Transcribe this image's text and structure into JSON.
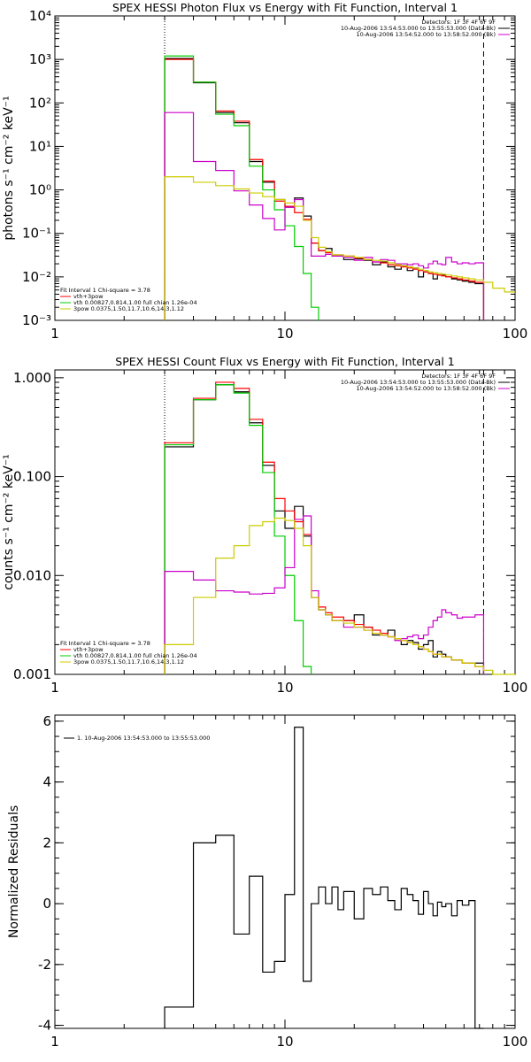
{
  "chart_data": [
    {
      "type": "line",
      "title": "SPEX HESSI Photon Flux vs Energy with Fit Function, Interval 1",
      "ylabel": "photons s⁻¹ cm⁻² keV⁻¹",
      "xlabel": "",
      "x_scale": "log",
      "y_scale": "log",
      "xlim": [
        1,
        100
      ],
      "ylim": [
        0.001,
        10000
      ],
      "x_ticks": [
        "1",
        "10",
        "100"
      ],
      "y_ticks": [
        "10⁻³",
        "10⁻²",
        "10⁻¹",
        "10⁰",
        "10¹",
        "10²",
        "10³",
        "10⁴"
      ],
      "vlines": [
        {
          "x": 3.0,
          "style": "dotted"
        },
        {
          "x": 73,
          "style": "dashed"
        }
      ],
      "legend_top_right": [
        {
          "text": "Detectors: 1F 3F 4F 6F 9F",
          "color": "#000000"
        },
        {
          "text": "10-Aug-2006 13:54:53.000 to 13:55:53.000 (Data-Bk)",
          "color": "#000000"
        },
        {
          "text": "10-Aug-2006 13:54:52.000 to 13:58:52.000 (Bk)",
          "color": "#cc00cc"
        }
      ],
      "legend_bottom_left": [
        {
          "text": "Fit Interval 1    Chi-square = 3.78",
          "color": "#000000"
        },
        {
          "text": "vth+3pow",
          "color": "#ff0000"
        },
        {
          "text": "vth 0.00827,0.814,1.00   full chian 1.26e-04",
          "color": "#00cc00"
        },
        {
          "text": "3pow 0.0375,1.50,11.7,10.6,14.3,1.12",
          "color": "#cccc00"
        }
      ],
      "series": [
        {
          "color": "#000000",
          "edges": [
            3,
            4,
            5,
            6,
            7,
            8,
            9,
            10,
            11,
            12,
            13,
            14,
            15,
            16,
            18,
            20,
            22,
            24,
            26,
            28,
            30,
            32,
            34,
            36,
            38,
            40,
            42,
            44,
            46,
            48,
            50,
            53,
            56,
            59,
            63,
            67,
            73
          ],
          "values": [
            1050,
            290,
            60,
            35,
            4.5,
            1.5,
            0.6,
            0.4,
            0.65,
            0.25,
            0.06,
            0.04,
            0.045,
            0.03,
            0.025,
            0.026,
            0.024,
            0.019,
            0.022,
            0.017,
            0.015,
            0.018,
            0.014,
            0.016,
            0.01,
            0.013,
            0.012,
            0.009,
            0.011,
            0.011,
            0.01,
            0.009,
            0.0085,
            0.008,
            0.0075,
            0.007
          ]
        },
        {
          "color": "#ff0000",
          "edges": [
            3,
            4,
            5,
            6,
            7,
            8,
            9,
            10,
            11,
            12,
            13,
            14,
            15,
            16,
            18,
            20,
            22,
            24,
            26,
            28,
            30,
            32,
            34,
            36,
            38,
            40,
            42,
            44,
            46,
            48,
            50,
            53,
            56,
            59,
            63,
            67,
            73
          ],
          "values": [
            1000,
            300,
            65,
            38,
            5,
            1.6,
            0.55,
            0.42,
            0.3,
            0.21,
            0.06,
            0.04,
            0.036,
            0.032,
            0.03,
            0.027,
            0.025,
            0.022,
            0.021,
            0.019,
            0.018,
            0.017,
            0.016,
            0.015,
            0.014,
            0.013,
            0.012,
            0.0115,
            0.011,
            0.0105,
            0.01,
            0.0095,
            0.009,
            0.0085,
            0.008,
            0.0075
          ]
        },
        {
          "color": "#00cc00",
          "edges": [
            3,
            4,
            5,
            6,
            7,
            8,
            9,
            10,
            11,
            12,
            13,
            14
          ],
          "values": [
            1200,
            300,
            55,
            30,
            3.5,
            1,
            0.35,
            0.15,
            0.05,
            0.012,
            0.002
          ]
        },
        {
          "color": "#cc00cc",
          "edges": [
            3,
            4,
            5,
            6,
            7,
            8,
            9,
            10,
            11,
            12,
            13,
            14,
            15,
            16,
            18,
            20,
            22,
            24,
            26,
            28,
            30,
            32,
            34,
            36,
            38,
            40,
            42,
            44,
            46,
            48,
            50,
            53,
            56,
            59,
            63,
            67,
            73
          ],
          "values": [
            60,
            4.5,
            2.8,
            0.95,
            0.45,
            0.22,
            0.12,
            0.4,
            0.6,
            0.2,
            0.03,
            0.03,
            0.033,
            0.03,
            0.028,
            0.024,
            0.028,
            0.022,
            0.025,
            0.024,
            0.02,
            0.02,
            0.019,
            0.02,
            0.018,
            0.016,
            0.02,
            0.023,
            0.02,
            0.019,
            0.028,
            0.022,
            0.02,
            0.021,
            0.02,
            0.021
          ]
        },
        {
          "color": "#cccc00",
          "edges": [
            3,
            4,
            5,
            6,
            7,
            8,
            9,
            10,
            11,
            12,
            13,
            14,
            15,
            16,
            18,
            20,
            22,
            24,
            26,
            28,
            30,
            32,
            34,
            36,
            38,
            40,
            42,
            44,
            46,
            48,
            50,
            53,
            56,
            59,
            63,
            67,
            73,
            80,
            90,
            100
          ],
          "values": [
            2,
            1.5,
            1.25,
            1.05,
            0.85,
            0.7,
            0.6,
            0.5,
            0.42,
            0.2,
            0.08,
            0.048,
            0.038,
            0.032,
            0.03,
            0.028,
            0.025,
            0.024,
            0.023,
            0.021,
            0.019,
            0.018,
            0.017,
            0.016,
            0.015,
            0.014,
            0.013,
            0.0125,
            0.012,
            0.0115,
            0.011,
            0.0105,
            0.01,
            0.0095,
            0.009,
            0.0085,
            0.0075,
            0.0055,
            0.0045
          ]
        }
      ]
    },
    {
      "type": "line",
      "title": "SPEX HESSI Count Flux vs Energy with Fit Function, Interval 1",
      "ylabel": "counts s⁻¹ cm⁻² keV⁻¹",
      "xlabel": "",
      "x_scale": "log",
      "y_scale": "log",
      "xlim": [
        1,
        100
      ],
      "ylim": [
        0.001,
        1.2
      ],
      "x_ticks": [
        "1",
        "10",
        "100"
      ],
      "y_ticks": [
        "0.001",
        "0.010",
        "0.100",
        "1.000"
      ],
      "vlines": [
        {
          "x": 3.0,
          "style": "dotted"
        },
        {
          "x": 73,
          "style": "dashed"
        }
      ],
      "legend_top_right": [
        {
          "text": "Detectors: 1F 3F 4F 6F 9F",
          "color": "#000000"
        },
        {
          "text": "10-Aug-2006 13:54:53.000 to 13:55:53.000 (Data-Bk)",
          "color": "#000000"
        },
        {
          "text": "10-Aug-2006 13:54:52.000 to 13:58:52.000 (Bk)",
          "color": "#cc00cc"
        }
      ],
      "legend_bottom_left": [
        {
          "text": "Fit Interval 1    Chi-square = 3.78",
          "color": "#000000"
        },
        {
          "text": "vth+3pow",
          "color": "#ff0000"
        },
        {
          "text": "vth 0.00827,0.814,1.00   full chian 1.26e-04",
          "color": "#00cc00"
        },
        {
          "text": "3pow 0.0375,1.50,11.7,10.6,14.3,1.12",
          "color": "#cccc00"
        }
      ],
      "series": [
        {
          "color": "#000000",
          "edges": [
            3,
            4,
            5,
            6,
            7,
            8,
            9,
            10,
            11,
            12,
            13,
            14,
            15,
            16,
            18,
            20,
            22,
            24,
            26,
            28,
            30,
            32,
            34,
            36,
            38,
            40,
            42,
            44,
            46,
            48,
            50,
            53,
            56,
            59,
            63,
            67,
            73
          ],
          "values": [
            0.2,
            0.6,
            0.85,
            0.72,
            0.35,
            0.13,
            0.045,
            0.03,
            0.05,
            0.025,
            0.006,
            0.0045,
            0.004,
            0.0035,
            0.0035,
            0.004,
            0.003,
            0.0025,
            0.0025,
            0.0028,
            0.0023,
            0.002,
            0.0022,
            0.0021,
            0.0018,
            0.002,
            0.0022,
            0.0015,
            0.0017,
            0.0016,
            0.0015,
            0.0014,
            0.0014,
            0.0013,
            0.0013,
            0.0013
          ]
        },
        {
          "color": "#ff0000",
          "edges": [
            3,
            4,
            5,
            6,
            7,
            8,
            9,
            10,
            11,
            12,
            13,
            14,
            15,
            16,
            18,
            20,
            22,
            24,
            26,
            28,
            30,
            32,
            34,
            36,
            38,
            40,
            42,
            44,
            46,
            48,
            50,
            53,
            56,
            59,
            63,
            67,
            73
          ],
          "values": [
            0.22,
            0.62,
            0.9,
            0.78,
            0.38,
            0.14,
            0.06,
            0.045,
            0.035,
            0.026,
            0.006,
            0.0048,
            0.0042,
            0.0038,
            0.0035,
            0.0032,
            0.003,
            0.0028,
            0.0026,
            0.0024,
            0.0023,
            0.0022,
            0.0021,
            0.002,
            0.0019,
            0.0018,
            0.0017,
            0.0016,
            0.0016,
            0.0015,
            0.0015,
            0.0014,
            0.0014,
            0.0013,
            0.0013,
            0.0012
          ]
        },
        {
          "color": "#00cc00",
          "edges": [
            3,
            4,
            5,
            6,
            7,
            8,
            9,
            10,
            11,
            12,
            13
          ],
          "values": [
            0.21,
            0.6,
            0.85,
            0.7,
            0.33,
            0.11,
            0.025,
            0.01,
            0.0035,
            0.0012
          ]
        },
        {
          "color": "#cc00cc",
          "edges": [
            3,
            4,
            5,
            6,
            7,
            8,
            9,
            10,
            11,
            12,
            13,
            14,
            15,
            16,
            18,
            20,
            22,
            24,
            26,
            28,
            30,
            32,
            34,
            36,
            38,
            40,
            42,
            44,
            46,
            48,
            50,
            53,
            56,
            59,
            63,
            67,
            73
          ],
          "values": [
            0.011,
            0.009,
            0.007,
            0.0068,
            0.0065,
            0.0066,
            0.0075,
            0.012,
            0.037,
            0.04,
            0.007,
            0.0045,
            0.004,
            0.0035,
            0.003,
            0.003,
            0.0028,
            0.0026,
            0.0025,
            0.0024,
            0.0022,
            0.0023,
            0.0024,
            0.0025,
            0.0023,
            0.0025,
            0.003,
            0.0035,
            0.0038,
            0.0045,
            0.0042,
            0.004,
            0.0037,
            0.0038,
            0.0038,
            0.004
          ]
        },
        {
          "color": "#cccc00",
          "edges": [
            3,
            4,
            5,
            6,
            7,
            8,
            9,
            10,
            11,
            12,
            13,
            14,
            15,
            16,
            18,
            20,
            22,
            24,
            26,
            28,
            30,
            32,
            34,
            36,
            38,
            40,
            42,
            44,
            46,
            48,
            50,
            53,
            56,
            59,
            63,
            67,
            73,
            80,
            90,
            100
          ],
          "values": [
            0.002,
            0.006,
            0.015,
            0.02,
            0.032,
            0.035,
            0.038,
            0.036,
            0.03,
            0.02,
            0.006,
            0.0045,
            0.004,
            0.0035,
            0.0033,
            0.003,
            0.0028,
            0.0026,
            0.0025,
            0.0024,
            0.0023,
            0.0022,
            0.0021,
            0.002,
            0.0019,
            0.0018,
            0.0017,
            0.0016,
            0.0016,
            0.0015,
            0.0015,
            0.0014,
            0.0014,
            0.0013,
            0.0013,
            0.0012,
            0.0011,
            0.001,
            0.0009
          ]
        }
      ]
    },
    {
      "type": "line",
      "title": "",
      "ylabel": "Normalized Residuals",
      "xlabel": "",
      "x_scale": "log",
      "y_scale": "linear",
      "xlim": [
        1,
        100
      ],
      "ylim": [
        -4.1,
        6.2
      ],
      "x_ticks": [
        "1",
        "10",
        "100"
      ],
      "y_ticks": [
        "-4",
        "-2",
        "0",
        "2",
        "4",
        "6"
      ],
      "legend_top_left": [
        {
          "text": "1. 10-Aug-2006 13:54:53.000 to 13:55:53.000",
          "color": "#000000"
        }
      ],
      "series": [
        {
          "color": "#000000",
          "edges": [
            3,
            4,
            5,
            6,
            7,
            8,
            9,
            10,
            11,
            12,
            13,
            14,
            15,
            16,
            17,
            18,
            20,
            22,
            24,
            26,
            28,
            30,
            32,
            34,
            36,
            38,
            40,
            42,
            44,
            46,
            48,
            50,
            53,
            56,
            59,
            63,
            67,
            73
          ],
          "values": [
            -3.4,
            2.0,
            2.25,
            -1.0,
            0.9,
            -2.25,
            -1.9,
            0.3,
            5.8,
            -2.55,
            0.0,
            0.55,
            0.0,
            0.55,
            -0.2,
            0.4,
            -0.5,
            0.5,
            0.3,
            0.55,
            0.1,
            -0.2,
            0.5,
            0.3,
            0.1,
            -0.35,
            0.4,
            0.0,
            -0.4,
            0.05,
            -0.1,
            0.0,
            -0.4,
            0.1,
            -0.05,
            0.1,
            -4.1
          ]
        }
      ]
    }
  ]
}
